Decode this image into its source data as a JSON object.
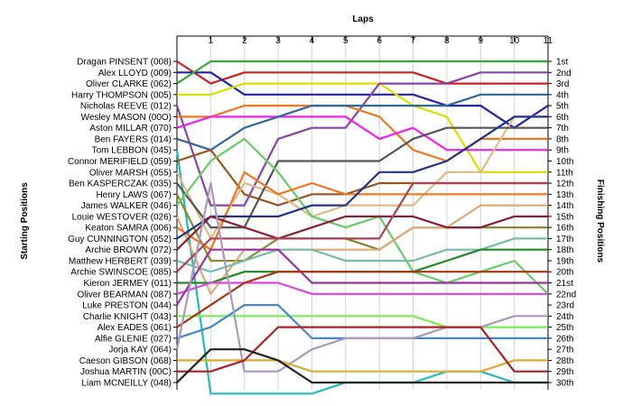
{
  "chart_data": {
    "type": "line",
    "xlabel": "Laps",
    "ylabel_left": "Starting Positions",
    "ylabel_right": "Finishing Positions",
    "laps": [
      1,
      2,
      3,
      4,
      5,
      6,
      7,
      8,
      9,
      10,
      11
    ],
    "finish_labels": [
      "1st",
      "2nd",
      "3rd",
      "4th",
      "5th",
      "6th",
      "7th",
      "8th",
      "9th",
      "10th",
      "11th",
      "12th",
      "13th",
      "14th",
      "15th",
      "16th",
      "17th",
      "18th",
      "19th",
      "20th",
      "21st",
      "22nd",
      "23rd",
      "24th",
      "25th",
      "26th",
      "27th",
      "28th",
      "29th",
      "30th"
    ],
    "series": [
      {
        "name": "Dragan PINSENT (008)",
        "color": "#cc2222",
        "positions": [
          1,
          3,
          2,
          2,
          2,
          2,
          2,
          2,
          3,
          3,
          3,
          3
        ]
      },
      {
        "name": "Alex LLOYD (009)",
        "color": "#2222aa",
        "positions": [
          2,
          2,
          4,
          4,
          4,
          4,
          4,
          4,
          5,
          5,
          7,
          5
        ]
      },
      {
        "name": "Oliver CLARKE (062)",
        "color": "#33aa33",
        "positions": [
          3,
          1,
          1,
          1,
          1,
          1,
          1,
          1,
          1,
          1,
          1,
          1
        ]
      },
      {
        "name": "Harry THOMPSON (005)",
        "color": "#dddd00",
        "positions": [
          4,
          4,
          3,
          3,
          3,
          3,
          3,
          5,
          6,
          11,
          11,
          11
        ]
      },
      {
        "name": "Nicholas REEVE (012)",
        "color": "#8844aa",
        "positions": [
          5,
          14,
          14,
          8,
          7,
          7,
          3,
          3,
          3,
          2,
          2,
          2
        ]
      },
      {
        "name": "Wesley MASON (00O)",
        "color": "#ee7722",
        "positions": [
          6,
          6,
          5,
          5,
          5,
          5,
          6,
          9,
          10,
          8,
          8,
          8
        ]
      },
      {
        "name": "Aston MILLAR (070)",
        "color": "#ee22ee",
        "positions": [
          7,
          6,
          6,
          6,
          6,
          6,
          8,
          7,
          9,
          9,
          9,
          9
        ]
      },
      {
        "name": "Ben FAYERS (014)",
        "color": "#336699",
        "positions": [
          8,
          9,
          7,
          6,
          5,
          5,
          5,
          5,
          5,
          4,
          4,
          4
        ]
      },
      {
        "name": "Tom LEBBON (045)",
        "color": "#22bbbb",
        "positions": [
          9,
          31,
          31,
          31,
          31,
          30,
          30,
          30,
          29,
          29,
          30,
          30
        ]
      },
      {
        "name": "Connor MERIFIELD (059)",
        "color": "#995522",
        "positions": [
          10,
          9,
          13,
          14,
          13,
          13,
          12,
          12,
          12,
          12,
          12,
          12
        ]
      },
      {
        "name": "Oliver MARSH (055)",
        "color": "#ddbb88",
        "positions": [
          11,
          17,
          12,
          13,
          15,
          14,
          14,
          14,
          11,
          11,
          6,
          6
        ]
      },
      {
        "name": "Ben KASPERCZAK (035)",
        "color": "#555555",
        "positions": [
          12,
          16,
          16,
          10,
          10,
          10,
          10,
          8,
          7,
          7,
          7,
          7
        ]
      },
      {
        "name": "Henry LAWS (067)",
        "color": "#888833",
        "positions": [
          13,
          19,
          19,
          17,
          17,
          17,
          18,
          16,
          16,
          16,
          16,
          16
        ]
      },
      {
        "name": "James WALKER (046)",
        "color": "#66cc66",
        "positions": [
          14,
          10,
          8,
          11,
          15,
          16,
          15,
          20,
          21,
          20,
          19,
          22
        ]
      },
      {
        "name": "Louie WESTOVER (026)",
        "color": "#ddaa77",
        "positions": [
          15,
          22,
          18,
          18,
          18,
          18,
          18,
          16,
          16,
          14,
          14,
          14
        ]
      },
      {
        "name": "Keaton SAMRA (006)",
        "color": "#ee7722",
        "positions": [
          16,
          18,
          11,
          13,
          12,
          13,
          13,
          13,
          13,
          13,
          13,
          13
        ]
      },
      {
        "name": "Guy CUNNINGTON (052)",
        "color": "#223388",
        "positions": [
          17,
          15,
          15,
          15,
          14,
          14,
          11,
          11,
          10,
          8,
          6,
          6
        ]
      },
      {
        "name": "Archie BROWN (072)",
        "color": "#882233",
        "positions": [
          18,
          15,
          16,
          17,
          16,
          15,
          15,
          15,
          16,
          16,
          15,
          15
        ]
      },
      {
        "name": "Matthew HERBERT (039)",
        "color": "#77bbaa",
        "positions": [
          19,
          20,
          19,
          18,
          18,
          19,
          19,
          19,
          18,
          18,
          17,
          17
        ]
      },
      {
        "name": "Archie SWINSCOE (085)",
        "color": "#aa4455",
        "positions": [
          20,
          17,
          17,
          17,
          17,
          17,
          17,
          12,
          12,
          12,
          12,
          12
        ]
      },
      {
        "name": "Kieron JERMEY (011)",
        "color": "#228822",
        "positions": [
          21,
          21,
          20,
          20,
          20,
          20,
          20,
          20,
          19,
          18,
          18,
          18
        ]
      },
      {
        "name": "Oliver BEARMAN (087)",
        "color": "#dd44dd",
        "positions": [
          22,
          21,
          21,
          21,
          22,
          22,
          22,
          22,
          22,
          22,
          22,
          22
        ]
      },
      {
        "name": "Luke PRESTON (044)",
        "color": "#993399",
        "positions": [
          23,
          18,
          18,
          18,
          21,
          21,
          21,
          21,
          21,
          21,
          21,
          21
        ]
      },
      {
        "name": "Charlie KNIGHT (043)",
        "color": "#77ee55",
        "positions": [
          24,
          24,
          24,
          24,
          24,
          24,
          24,
          24,
          25,
          25,
          25,
          25
        ]
      },
      {
        "name": "Alex EADES (061)",
        "color": "#aa3311",
        "positions": [
          25,
          23,
          21,
          20,
          20,
          20,
          20,
          20,
          20,
          20,
          20,
          20
        ]
      },
      {
        "name": "Alfie GLENIE (027)",
        "color": "#4488cc",
        "positions": [
          26,
          25,
          23,
          23,
          26,
          26,
          26,
          26,
          26,
          26,
          26,
          26
        ]
      },
      {
        "name": "Jorja KAY (064)",
        "color": "#aa99bb",
        "positions": [
          27,
          12,
          29,
          29,
          27,
          26,
          26,
          26,
          25,
          25,
          24,
          24
        ]
      },
      {
        "name": "Caeson GIBSON (068)",
        "color": "#ddaa33",
        "positions": [
          28,
          28,
          28,
          28,
          29,
          29,
          29,
          29,
          29,
          29,
          28,
          28
        ]
      },
      {
        "name": "Joshua MARTIN (00C)",
        "color": "#aa2222",
        "positions": [
          29,
          29,
          28,
          25,
          25,
          25,
          25,
          25,
          25,
          25,
          29,
          29
        ]
      },
      {
        "name": "Liam MCNEILLY (048)",
        "color": "#222222",
        "positions": [
          30,
          27,
          27,
          28,
          30,
          30,
          30,
          30,
          30,
          30,
          30,
          30
        ]
      }
    ]
  }
}
